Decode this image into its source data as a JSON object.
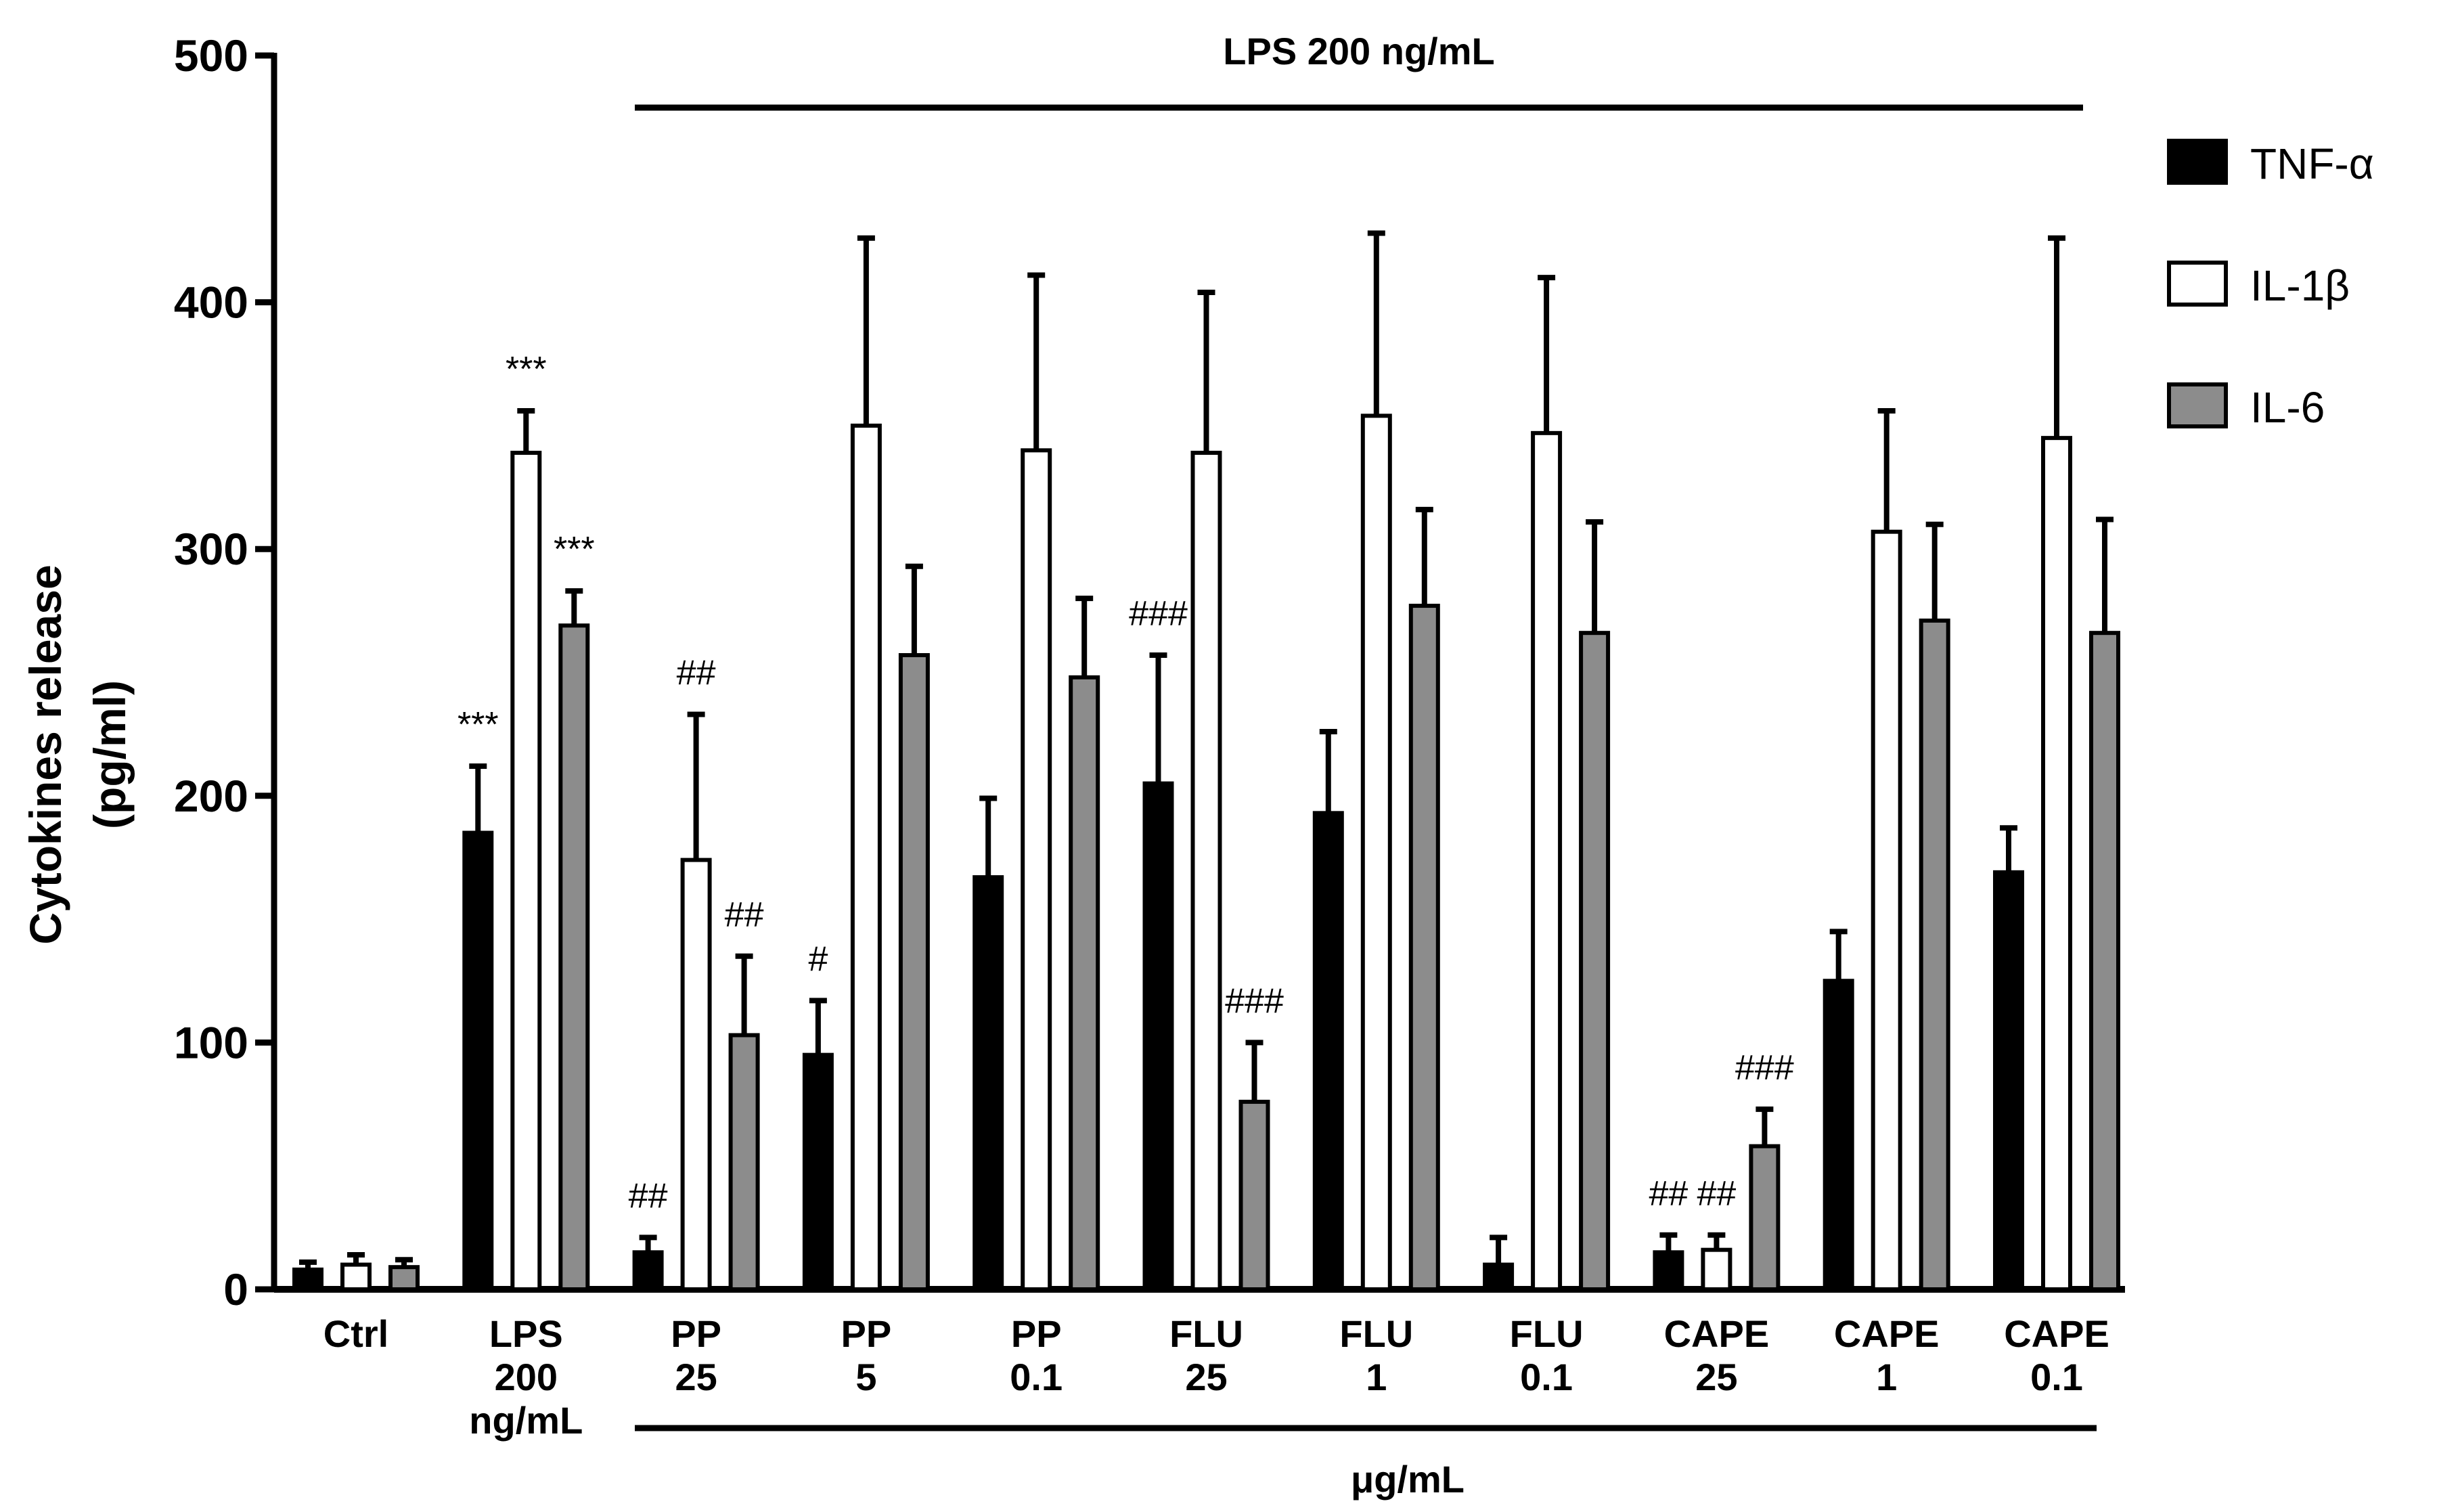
{
  "chart_data": {
    "type": "bar",
    "ylabel_line1": "Cytokines release",
    "ylabel_line2": "(pg/ml)",
    "ylim": [
      0,
      500
    ],
    "yticks": [
      "0",
      "100",
      "200",
      "300",
      "400",
      "500"
    ],
    "top_group_label": "LPS 200 ng/mL",
    "bottom_group_label": "μg/mL",
    "categories": [
      [
        "Ctrl"
      ],
      [
        "LPS",
        "200",
        "ng/mL"
      ],
      [
        "PP",
        "25"
      ],
      [
        "PP",
        "5"
      ],
      [
        "PP",
        "0.1"
      ],
      [
        "FLU",
        "25"
      ],
      [
        "FLU",
        "1"
      ],
      [
        "FLU",
        "0.1"
      ],
      [
        "CAPE",
        "25"
      ],
      [
        "CAPE",
        "1"
      ],
      [
        "CAPE",
        "0.1"
      ]
    ],
    "series": [
      {
        "name": "TNF-α",
        "color": "#000000",
        "values": [
          8,
          185,
          15,
          95,
          167,
          205,
          193,
          10,
          15,
          125,
          169
        ],
        "errors": [
          3,
          27,
          6,
          22,
          32,
          52,
          33,
          11,
          7,
          20,
          18
        ],
        "annotations": [
          "",
          "***",
          "##",
          "#",
          "",
          "###",
          "",
          "",
          "##",
          "",
          ""
        ]
      },
      {
        "name": "IL-1β",
        "color": "#ffffff",
        "values": [
          10,
          339,
          174,
          350,
          340,
          339,
          354,
          347,
          16,
          307,
          345
        ],
        "errors": [
          4,
          17,
          59,
          76,
          71,
          65,
          74,
          63,
          6,
          49,
          81
        ],
        "annotations": [
          "",
          "***",
          "##",
          "",
          "",
          "",
          "",
          "",
          "##",
          "",
          ""
        ]
      },
      {
        "name": "IL-6",
        "color": "#8c8c8c",
        "values": [
          9,
          269,
          103,
          257,
          248,
          76,
          277,
          266,
          58,
          271,
          266
        ],
        "errors": [
          3,
          14,
          32,
          36,
          32,
          24,
          39,
          45,
          15,
          39,
          46
        ],
        "annotations": [
          "",
          "***",
          "##",
          "",
          "",
          "###",
          "",
          "",
          "###",
          "",
          ""
        ]
      }
    ]
  }
}
